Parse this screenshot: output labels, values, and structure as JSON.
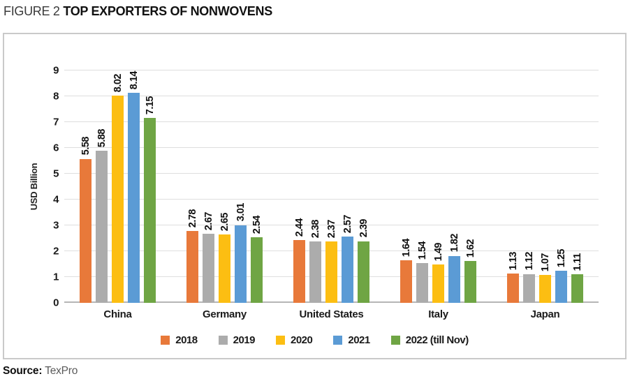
{
  "title": {
    "prefix": "FIGURE 2",
    "main": "TOP EXPORTERS OF NONWOVENS"
  },
  "chart_data": {
    "type": "bar",
    "categories": [
      "China",
      "Germany",
      "United States",
      "Italy",
      "Japan"
    ],
    "series": [
      {
        "name": "2018",
        "color": "#E8793A",
        "values": [
          5.58,
          2.78,
          2.44,
          1.64,
          1.13
        ]
      },
      {
        "name": "2019",
        "color": "#ACACAC",
        "values": [
          5.88,
          2.67,
          2.38,
          1.54,
          1.12
        ]
      },
      {
        "name": "2020",
        "color": "#FCBE12",
        "values": [
          8.02,
          2.65,
          2.37,
          1.49,
          1.07
        ]
      },
      {
        "name": "2021",
        "color": "#5B9BD5",
        "values": [
          8.14,
          3.01,
          2.57,
          1.82,
          1.25
        ]
      },
      {
        "name": "2022 (till Nov)",
        "color": "#6FA544",
        "values": [
          7.15,
          2.54,
          2.39,
          1.62,
          1.11
        ]
      }
    ],
    "ylabel": "USD Billion",
    "ylim": [
      0,
      9
    ],
    "yticks": [
      0,
      1,
      2,
      3,
      4,
      5,
      6,
      7,
      8,
      9
    ],
    "grid": true,
    "legend_position": "bottom",
    "value_labels": "rotated-90-above-bars"
  },
  "source": {
    "label": "Source:",
    "value": "TexPro"
  }
}
